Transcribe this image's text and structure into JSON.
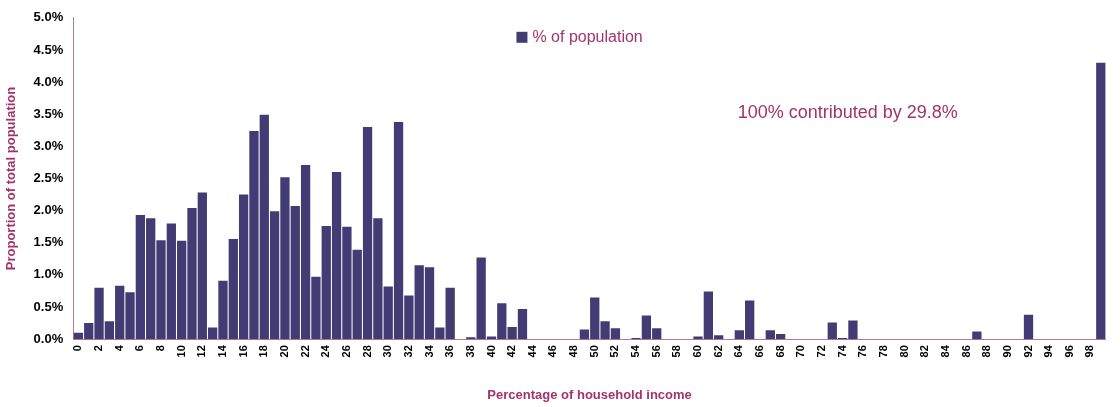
{
  "chart_data": {
    "type": "bar",
    "xlabel": "Percentage of household income",
    "ylabel": "Proportion of total population",
    "categories": [
      "0",
      null,
      "2",
      null,
      "4",
      null,
      "6",
      null,
      "8",
      null,
      "10",
      null,
      "12",
      null,
      "14",
      null,
      "16",
      null,
      "18",
      null,
      "20",
      null,
      "22",
      null,
      "24",
      null,
      "26",
      null,
      "28",
      null,
      "30",
      null,
      "32",
      null,
      "34",
      null,
      "36",
      null,
      "38",
      null,
      "40",
      null,
      "42",
      null,
      "44",
      null,
      "46",
      null,
      "48",
      null,
      "50",
      null,
      "52",
      null,
      "54",
      null,
      "56",
      null,
      "58",
      null,
      "60",
      null,
      "62",
      null,
      "64",
      null,
      "66",
      null,
      "68",
      null,
      "70",
      null,
      "72",
      null,
      "74",
      null,
      "76",
      null,
      "78",
      null,
      "80",
      null,
      "82",
      null,
      "84",
      null,
      "86",
      null,
      "88",
      null,
      "90",
      null,
      "92",
      null,
      "94",
      null,
      "96",
      null,
      "98",
      null
    ],
    "series": [
      {
        "name": "% of population",
        "color": "#433c74",
        "values": [
          0.1,
          0.25,
          0.8,
          0.28,
          0.83,
          0.73,
          1.93,
          1.88,
          1.54,
          1.8,
          1.53,
          2.04,
          2.28,
          0.18,
          0.91,
          1.56,
          2.25,
          3.24,
          3.49,
          1.99,
          2.52,
          2.07,
          2.71,
          0.97,
          1.76,
          2.6,
          1.75,
          1.39,
          3.3,
          1.88,
          0.82,
          3.38,
          0.68,
          1.15,
          1.12,
          0.18,
          0.8,
          0,
          0.03,
          1.27,
          0.04,
          0.56,
          0.19,
          0.47,
          0,
          0,
          0,
          0,
          0,
          0.15,
          0.65,
          0.28,
          0.17,
          0,
          0.02,
          0.37,
          0.17,
          0,
          0,
          0,
          0.04,
          0.74,
          0.06,
          0,
          0.14,
          0.6,
          0,
          0.14,
          0.08,
          0,
          0,
          0,
          0,
          0.26,
          0.02,
          0.29,
          0,
          0,
          0,
          0,
          0,
          0,
          0,
          0,
          0,
          0,
          0,
          0.12,
          0,
          0,
          0,
          0,
          0.38,
          0,
          0,
          0,
          0,
          0,
          0,
          4.3
        ]
      }
    ],
    "ylim": [
      0,
      5
    ],
    "yticks": [
      {
        "value": 0,
        "label": "0.0%"
      },
      {
        "value": 0.5,
        "label": "0.5%"
      },
      {
        "value": 1,
        "label": "1.0%"
      },
      {
        "value": 1.5,
        "label": "1.5%"
      },
      {
        "value": 2,
        "label": "2.0%"
      },
      {
        "value": 2.5,
        "label": "2.5%"
      },
      {
        "value": 3,
        "label": "3.0%"
      },
      {
        "value": 3.5,
        "label": "3.5%"
      },
      {
        "value": 4,
        "label": "4.0%"
      },
      {
        "value": 4.5,
        "label": "4.5%"
      },
      {
        "value": 5,
        "label": "5.0%"
      }
    ],
    "annotations": [
      "100% contributed by 29.8%"
    ],
    "legend": "top",
    "grid": false
  }
}
